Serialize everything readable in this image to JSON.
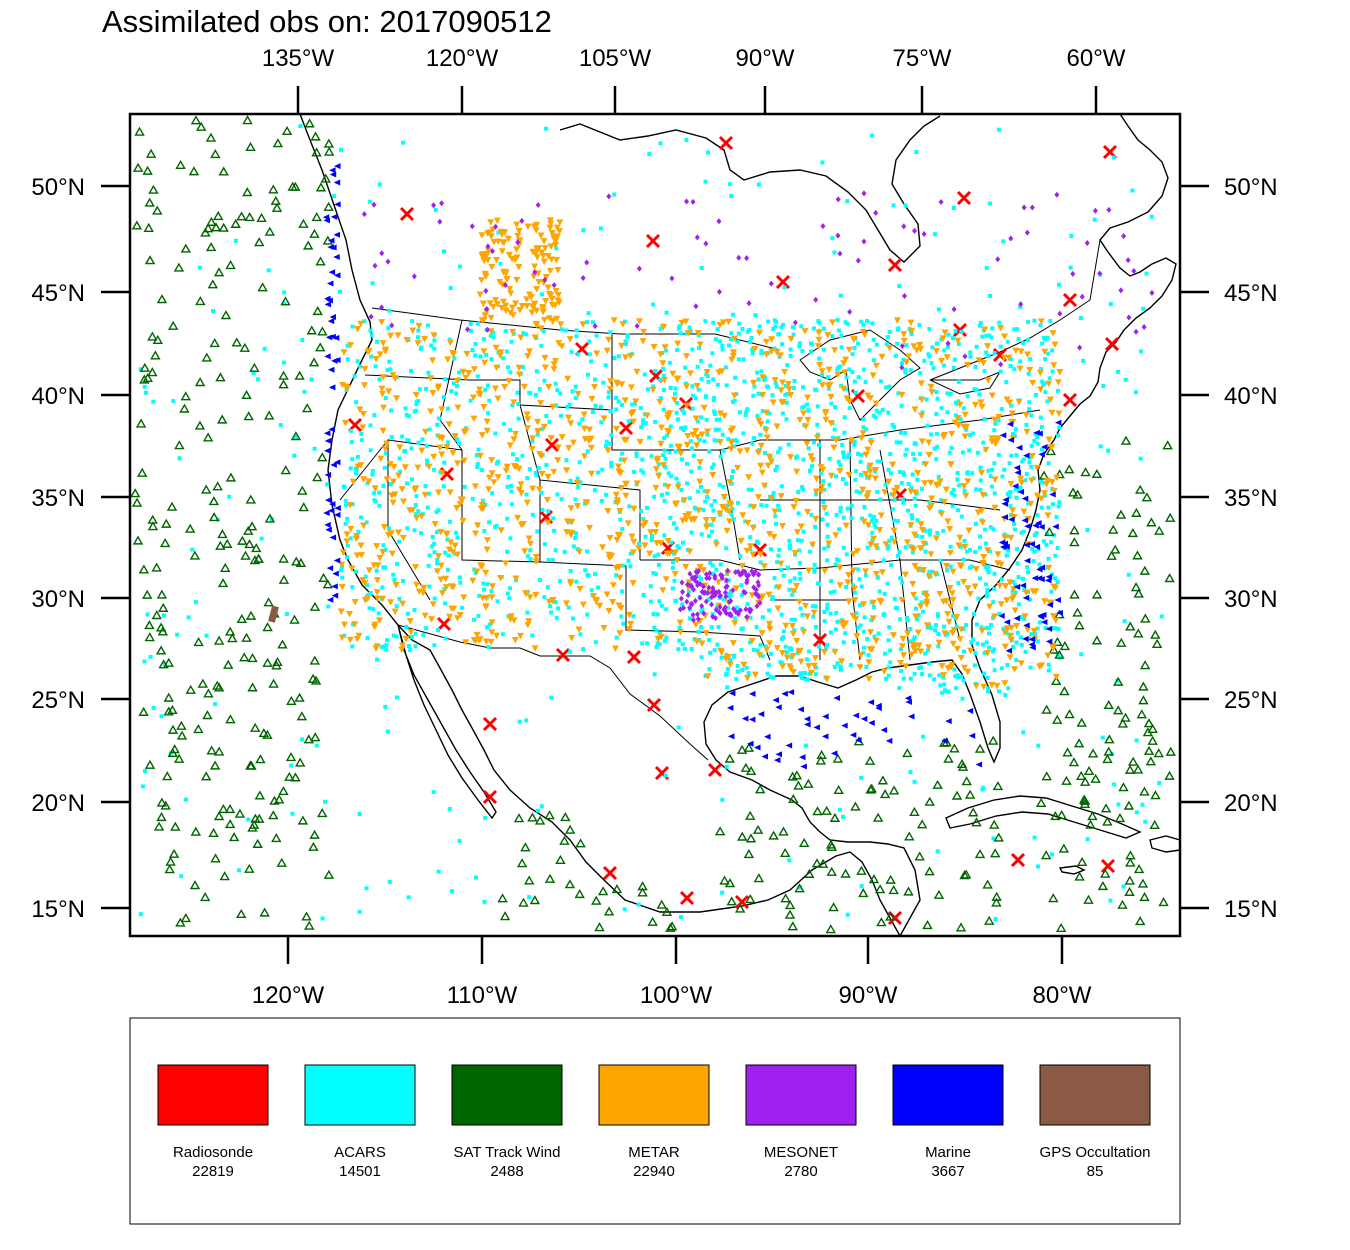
{
  "title": "Assimilated obs on: 2017090512",
  "top_axis_labels": [
    "135°W",
    "120°W",
    "105°W",
    "90°W",
    "75°W",
    "60°W"
  ],
  "bottom_axis_labels": [
    "120°W",
    "110°W",
    "100°W",
    "90°W",
    "80°W"
  ],
  "left_axis_labels": [
    "50°N",
    "45°N",
    "40°N",
    "35°N",
    "30°N",
    "25°N",
    "20°N",
    "15°N"
  ],
  "right_axis_labels": [
    "50°N",
    "45°N",
    "40°N",
    "35°N",
    "30°N",
    "25°N",
    "20°N",
    "15°N"
  ],
  "map": {
    "lon_range": [
      -127.5,
      -73.5
    ],
    "lat_range": [
      13.5,
      53.5
    ],
    "background": "#ffffff",
    "coastline_color": "#000000"
  },
  "legend": [
    {
      "name": "Radiosonde",
      "count": "22819",
      "color": "#ff0000",
      "marker": "x-cross"
    },
    {
      "name": "ACARS",
      "count": "14501",
      "color": "#00ffff",
      "marker": "dot"
    },
    {
      "name": "SAT Track Wind",
      "count": "2488",
      "color": "#006400",
      "marker": "open-triangle"
    },
    {
      "name": "METAR",
      "count": "22940",
      "color": "#ffa500",
      "marker": "down-triangle"
    },
    {
      "name": "MESONET",
      "count": "2780",
      "color": "#a020f0",
      "marker": "diamond"
    },
    {
      "name": "Marine",
      "count": "3667",
      "color": "#0000ff",
      "marker": "left-triangle"
    },
    {
      "name": "GPS Occultation",
      "count": "85",
      "color": "#8b5a44",
      "marker": "square"
    }
  ]
}
